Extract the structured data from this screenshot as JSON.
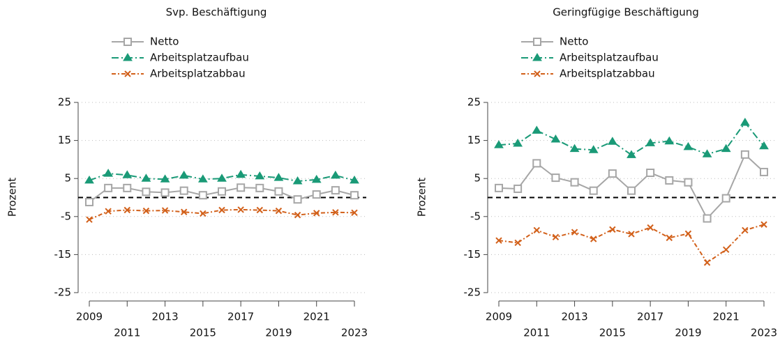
{
  "chart_data": [
    {
      "type": "line",
      "title": "Svp. Beschäftigung",
      "ylabel": "Prozent",
      "x": [
        2009,
        2010,
        2011,
        2012,
        2013,
        2014,
        2015,
        2016,
        2017,
        2018,
        2019,
        2020,
        2021,
        2022,
        2023
      ],
      "xlim": [
        2009,
        2023
      ],
      "xticks": [
        2009,
        2011,
        2013,
        2015,
        2017,
        2019,
        2021,
        2023
      ],
      "ylim": [
        -25,
        25
      ],
      "yticks": [
        -25,
        -15,
        -5,
        5,
        15,
        25
      ],
      "grid": true,
      "hline": 0,
      "series": [
        {
          "name": "Netto",
          "color": "#a6a6a6",
          "marker": "square",
          "values": [
            -1.2,
            2.5,
            2.5,
            1.5,
            1.3,
            1.8,
            0.6,
            1.6,
            2.6,
            2.5,
            1.6,
            -0.5,
            0.8,
            1.9,
            0.6
          ]
        },
        {
          "name": "Arbeitsplatzaufbau",
          "color": "#1a9a77",
          "marker": "triangle",
          "values": [
            4.5,
            6.3,
            5.9,
            5.0,
            4.8,
            5.8,
            4.8,
            5.0,
            6.0,
            5.6,
            5.2,
            4.3,
            4.7,
            5.8,
            4.5
          ]
        },
        {
          "name": "Arbeitsplatzabbau",
          "color": "#d2601a",
          "marker": "x",
          "values": [
            -5.8,
            -3.6,
            -3.3,
            -3.5,
            -3.4,
            -3.8,
            -4.2,
            -3.3,
            -3.2,
            -3.3,
            -3.5,
            -4.6,
            -4.1,
            -3.9,
            -4.0
          ]
        }
      ]
    },
    {
      "type": "line",
      "title": "Geringfügige Beschäftigung",
      "ylabel": "Prozent",
      "x": [
        2009,
        2010,
        2011,
        2012,
        2013,
        2014,
        2015,
        2016,
        2017,
        2018,
        2019,
        2020,
        2021,
        2022,
        2023
      ],
      "xlim": [
        2009,
        2023
      ],
      "xticks": [
        2009,
        2011,
        2013,
        2015,
        2017,
        2019,
        2021,
        2023
      ],
      "ylim": [
        -25,
        25
      ],
      "yticks": [
        -25,
        -15,
        -5,
        5,
        15,
        25
      ],
      "grid": true,
      "hline": 0,
      "series": [
        {
          "name": "Netto",
          "color": "#a6a6a6",
          "marker": "square",
          "values": [
            2.5,
            2.3,
            9.0,
            5.2,
            4.0,
            1.8,
            6.3,
            1.8,
            6.5,
            4.5,
            4.0,
            -5.5,
            -0.2,
            11.3,
            6.7
          ]
        },
        {
          "name": "Arbeitsplatzaufbau",
          "color": "#1a9a77",
          "marker": "triangle",
          "values": [
            13.8,
            14.2,
            17.6,
            15.3,
            12.8,
            12.5,
            14.7,
            11.2,
            14.3,
            14.8,
            13.3,
            11.4,
            12.8,
            19.7,
            13.5
          ]
        },
        {
          "name": "Arbeitsplatzabbau",
          "color": "#d2601a",
          "marker": "x",
          "values": [
            -11.3,
            -11.9,
            -8.6,
            -10.4,
            -9.1,
            -10.9,
            -8.4,
            -9.6,
            -7.9,
            -10.6,
            -9.5,
            -17.1,
            -13.7,
            -8.6,
            -7.1
          ]
        }
      ]
    }
  ]
}
